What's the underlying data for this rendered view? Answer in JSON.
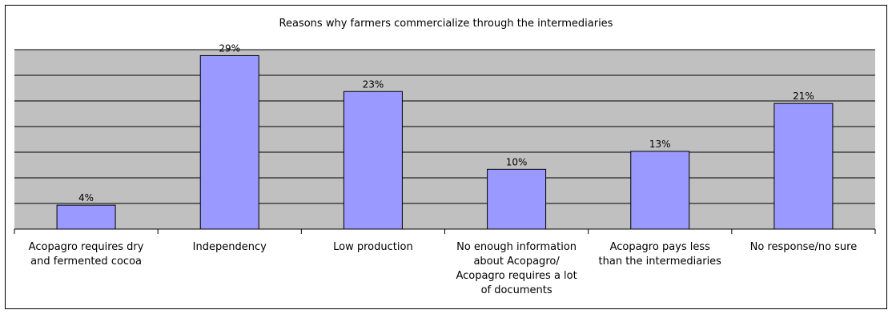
{
  "chart_data": {
    "type": "bar",
    "title": "Reasons why farmers commercialize through the intermediaries",
    "categories": [
      "Acopagro requires dry and fermented cocoa",
      "Independency",
      "Low production",
      "No enough information about Acopagro/ Acopagro requires a lot of documents",
      "Acopagro pays less than the intermediaries",
      "No response/no sure"
    ],
    "category_lines": [
      [
        "Acopagro requires dry",
        "and fermented cocoa"
      ],
      [
        "Independency"
      ],
      [
        "Low production"
      ],
      [
        "No enough information",
        "about Acopagro/",
        "Acopagro requires a lot",
        "of documents"
      ],
      [
        "Acopagro pays less",
        "than the intermediaries"
      ],
      [
        "No response/no sure"
      ]
    ],
    "values": [
      4,
      29,
      23,
      10,
      13,
      21
    ],
    "data_labels": [
      "4%",
      "29%",
      "23%",
      "10%",
      "13%",
      "21%"
    ],
    "ylim": [
      0,
      30
    ],
    "grid": true,
    "legend": "none",
    "colors": {
      "bar": "#9999ff",
      "bar_edge": "#000000",
      "plot_bg": "#c0c0c0",
      "grid": "#000000"
    }
  }
}
